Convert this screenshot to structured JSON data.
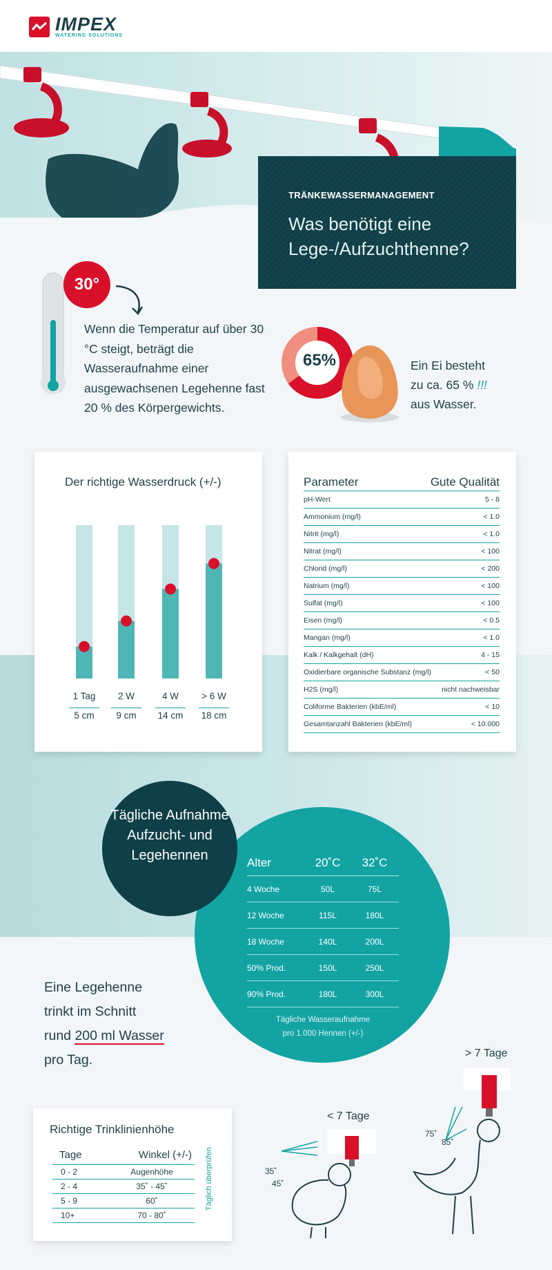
{
  "brand": {
    "name": "IMPEX",
    "tagline": "WATERING SOLUTIONS"
  },
  "hero": {
    "kicker": "TRÄNKEWASSERMANAGEMENT",
    "title": "Was benötigt eine Lege-/Aufzuchthenne?"
  },
  "temperature": {
    "badge": "30°",
    "text": "Wenn die Temperatur auf über 30 °C steigt, beträgt die Wasseraufnahme einer ausgewachsenen Legehenne fast 20 % des Körpergewichts."
  },
  "egg": {
    "percent_label": "65%",
    "percent_value": 65,
    "text_line1": "Ein Ei besteht",
    "text_line2": "zu ca. 65 %",
    "text_mark": "!!!",
    "text_line3": "aus Wasser."
  },
  "pressure": {
    "title": "Der richtige Wasserdruck (+/-)",
    "tubes": [
      {
        "age": "1 Tag",
        "height": "5 cm",
        "cm": 5
      },
      {
        "age": "2 W",
        "height": "9 cm",
        "cm": 9
      },
      {
        "age": "4 W",
        "height": "14 cm",
        "cm": 14
      },
      {
        "age": "> 6 W",
        "height": "18 cm",
        "cm": 18
      }
    ]
  },
  "params": {
    "header_param": "Parameter",
    "header_quality": "Gute Qualität",
    "rows": [
      {
        "name": "pH-Wert",
        "value": "5 - 8"
      },
      {
        "name": "Ammonium (mg/l)",
        "value": "< 1.0"
      },
      {
        "name": "Nitrit (mg/l)",
        "value": "< 1.0"
      },
      {
        "name": "Nitrat (mg/l)",
        "value": "< 100"
      },
      {
        "name": "Chlorid (mg/l)",
        "value": "< 200"
      },
      {
        "name": "Natrium (mg/l)",
        "value": "< 100"
      },
      {
        "name": "Sulfat (mg/l)",
        "value": "< 100"
      },
      {
        "name": "Eisen (mg/l)",
        "value": "< 0.5"
      },
      {
        "name": "Mangan (mg/l)",
        "value": "< 1.0"
      },
      {
        "name": "Kalk / Kalkgehalt (dH)",
        "value": "4 - 15"
      },
      {
        "name": "Oxidierbare organische Substanz (mg/l)",
        "value": "< 50"
      },
      {
        "name": "H2S (mg/l)",
        "value": "nicht nachweisbar"
      },
      {
        "name": "Coliforme Bakterien (kbE/ml)",
        "value": "< 10"
      },
      {
        "name": "Gesamtanzahl Bakterien (kbE/ml)",
        "value": "< 10.000"
      }
    ]
  },
  "intake": {
    "circle_title": "Tägliche Aufnahme Aufzucht- und Legehennen",
    "col_age": "Alter",
    "col_20": "20˚C",
    "col_32": "32˚C",
    "rows": [
      {
        "age": "4 Woche",
        "t20": "50L",
        "t32": "75L"
      },
      {
        "age": "12 Woche",
        "t20": "115L",
        "t32": "180L"
      },
      {
        "age": "18 Woche",
        "t20": "140L",
        "t32": "200L"
      },
      {
        "age": "50% Prod.",
        "t20": "150L",
        "t32": "250L"
      },
      {
        "age": "90% Prod.",
        "t20": "180L",
        "t32": "300L"
      }
    ],
    "note_line1": "Tägliche Wasseraufnahme",
    "note_line2": "pro 1.000 Hennen  (+/-)"
  },
  "drink": {
    "line1": "Eine Legehenne",
    "line2": "trinkt im Schnitt",
    "line3_pre": "rund ",
    "line3_hl": "200 ml Wasser",
    "line4": "pro Tag."
  },
  "height": {
    "title": "Richtige Trinklinienhöhe",
    "col_days": "Tage",
    "col_angle": "Winkel (+/-)",
    "rows": [
      {
        "days": "0 - 2",
        "angle": "Augenhöhe"
      },
      {
        "days": "2 - 4",
        "angle": "35˚ - 45˚"
      },
      {
        "days": "5 - 9",
        "angle": "60˚"
      },
      {
        "days": "10+",
        "angle": "70 - 80˚"
      }
    ],
    "side_note": "Täglich überprüfen"
  },
  "chicks": {
    "young_label": "< 7 Tage",
    "young_a1": "35˚",
    "young_a2": "45˚",
    "old_label": "> 7 Tage",
    "old_a1": "75˚",
    "old_a2": "85˚"
  },
  "colors": {
    "teal": "#13a3a3",
    "dark": "#0f3f47",
    "red": "#d8102a",
    "light_teal": "#bfe1e3"
  }
}
